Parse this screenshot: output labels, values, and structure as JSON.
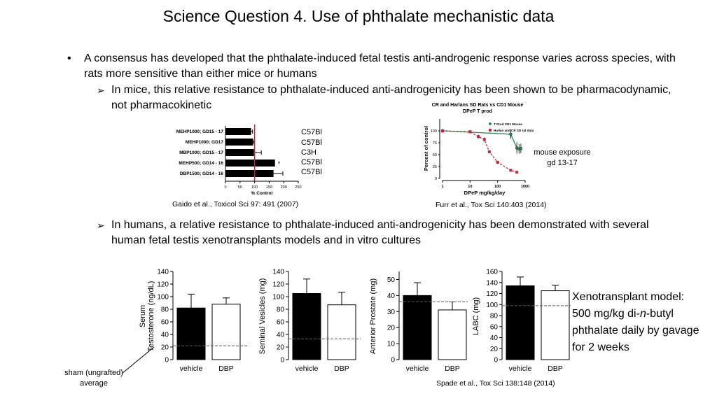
{
  "slide": {
    "title": "Science Question 4. Use of phthalate mechanistic data",
    "bullet1": "A consensus has developed that the phthalate-induced fetal testis anti-androgenic response varies across species, with rats more sensitive than either mice or humans",
    "sub1": "In mice, this relative resistance to phthalate-induced anti-androgenicity has been shown to be pharmacodynamic, not pharmacokinetic",
    "sub2": "In humans, a relative resistance to phthalate-induced anti-androgenicity has been demonstrated with several human fetal testis xenotransplants models and in vitro cultures",
    "bullet_mark": "•",
    "sub_mark": "➢",
    "strains": [
      "C57Bl",
      "C57Bl",
      "C3H",
      "C57Bl",
      "C57Bl"
    ],
    "gaido_citation": "Gaido et al., Toxicol Sci 97: 491 (2007)",
    "furr_citation": "Furr et al., Tox Sci 140:403 (2014)",
    "mouse_note": "mouse exposure gd 13-17",
    "xeno_line1": "Xenotransplant model: 500 mg/kg di-",
    "xeno_italic": "n",
    "xeno_line2": "-butyl phthalate daily by gavage for 2 weeks",
    "sham_label": "sham (ungrafted) average",
    "spade_citation": "Spade et al., Tox Sci 138:148 (2014)"
  },
  "chart_data": [
    {
      "type": "bar",
      "orientation": "horizontal",
      "categories": [
        "MEHP1000; GD15 - 17",
        "MEHP1000; GD17",
        "MBP1000; GD15 - 17",
        "MEHP500; GD14 - 16",
        "DBP1500; GD14 - 16"
      ],
      "values": [
        88,
        95,
        98,
        170,
        165
      ],
      "errors": [
        5,
        3,
        25,
        0,
        32
      ],
      "annotations": [
        "",
        "",
        "",
        "*",
        ""
      ],
      "xlabel": "% Control",
      "xticks": [
        0,
        50,
        100,
        150,
        200,
        250
      ],
      "xlim": [
        0,
        250
      ],
      "reference_line": 100,
      "colors": {
        "bar": "#000000",
        "reference": "#e31a1c"
      }
    },
    {
      "type": "line",
      "title": "CR and Harlans SD Rats vs CD1 Mouse",
      "subtitle": "DPeP T prod",
      "xlabel": "DPeP mg/kg/day",
      "ylabel": "Percent of control",
      "xscale": "log",
      "xlim": [
        1,
        1000
      ],
      "ylim": [
        0,
        125
      ],
      "xticks": [
        "1",
        "10",
        "100",
        "1000"
      ],
      "yticks": [
        "0",
        "25",
        "50",
        "75",
        "100"
      ],
      "legend_position": "top-right",
      "series": [
        {
          "name": "T Prod CD1 Mouse",
          "color": "#2e8b57",
          "marker": "circle",
          "x": [
            1,
            300,
            500,
            600,
            700
          ],
          "y": [
            100,
            93,
            64,
            62,
            63
          ],
          "err": [
            4,
            10,
            12,
            10,
            10
          ]
        },
        {
          "name": "Harlan and CR SD rat data",
          "color": "#c0283a",
          "marker": "square",
          "x": [
            1,
            10,
            20,
            33,
            50,
            100,
            300,
            500
          ],
          "y": [
            100,
            98,
            88,
            82,
            56,
            34,
            17,
            13
          ],
          "err": [
            3,
            3,
            4,
            4,
            3,
            3,
            2,
            2
          ]
        }
      ]
    },
    {
      "type": "bar",
      "ylabel_lines": [
        "Serum",
        "Testosterone (ng/dL)"
      ],
      "categories": [
        "vehicle",
        "DBP"
      ],
      "values": [
        82,
        88
      ],
      "errors": [
        22,
        10
      ],
      "colors": [
        "#000000",
        "#ffffff"
      ],
      "ylim": [
        0,
        140
      ],
      "yticks": [
        0,
        20,
        40,
        60,
        80,
        100,
        120,
        140
      ],
      "reference_line": 22
    },
    {
      "type": "bar",
      "ylabel_lines": [
        "Seminal Vesicles (mg)"
      ],
      "categories": [
        "vehicle",
        "DBP"
      ],
      "values": [
        105,
        87
      ],
      "errors": [
        23,
        20
      ],
      "colors": [
        "#000000",
        "#ffffff"
      ],
      "ylim": [
        0,
        140
      ],
      "yticks": [
        0,
        20,
        40,
        60,
        80,
        100,
        120,
        140
      ],
      "reference_line": 33
    },
    {
      "type": "bar",
      "ylabel_lines": [
        "Anterior Prostate (mg)"
      ],
      "categories": [
        "vehicle",
        "DBP"
      ],
      "values": [
        40,
        31
      ],
      "errors": [
        8,
        5
      ],
      "colors": [
        "#000000",
        "#ffffff"
      ],
      "ylim": [
        0,
        55
      ],
      "yticks": [
        0,
        10,
        20,
        30,
        40,
        50
      ],
      "reference_line": 36
    },
    {
      "type": "bar",
      "ylabel_lines": [
        "LABC (mg)"
      ],
      "categories": [
        "vehicle",
        "DBP"
      ],
      "values": [
        134,
        125
      ],
      "errors": [
        16,
        10
      ],
      "colors": [
        "#000000",
        "#ffffff"
      ],
      "ylim": [
        0,
        160
      ],
      "yticks": [
        0,
        20,
        40,
        60,
        80,
        100,
        120,
        140,
        160
      ],
      "reference_line": 98
    }
  ]
}
